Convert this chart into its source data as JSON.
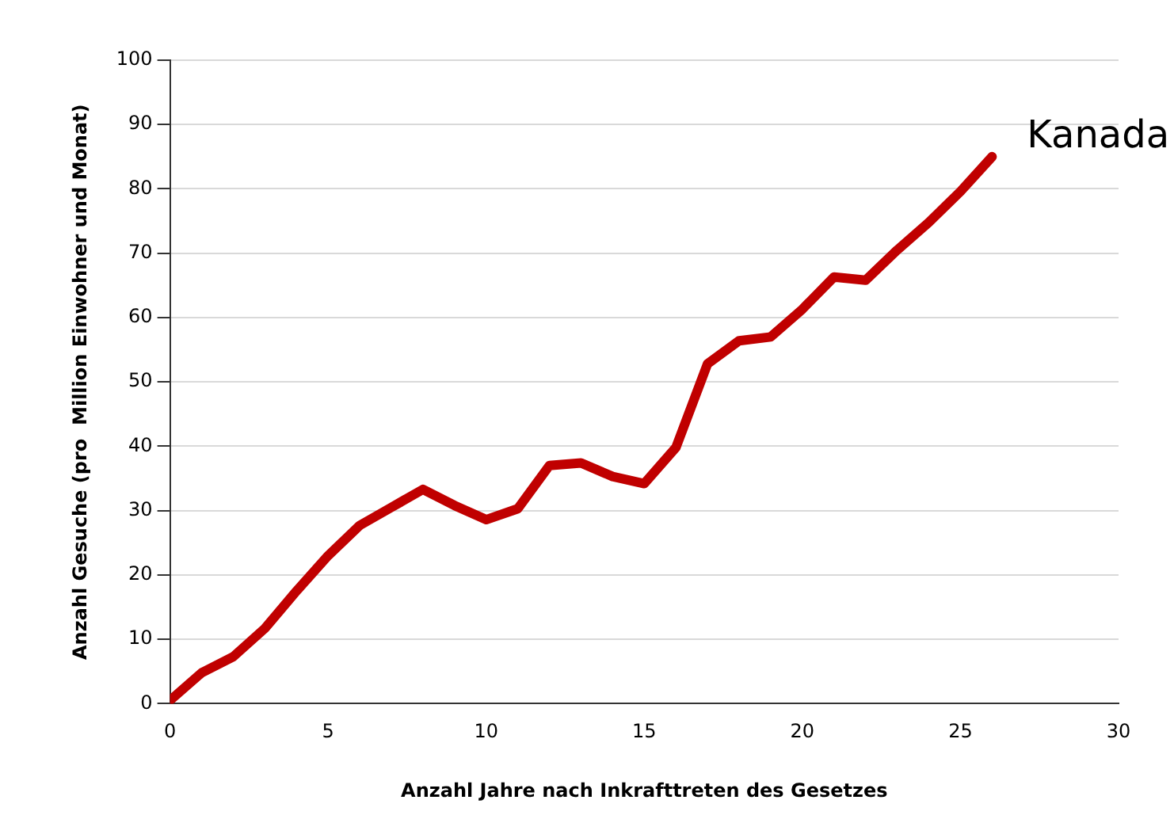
{
  "chart_data": {
    "type": "line",
    "xlabel": "Anzahl Jahre nach Inkrafttreten des Gesetzes",
    "ylabel": "Anzahl Gesuche (pro  Million Einwohner und Monat)",
    "x": [
      0,
      1,
      2,
      3,
      4,
      5,
      6,
      7,
      8,
      9,
      10,
      11,
      12,
      13,
      14,
      15,
      16,
      17,
      18,
      19,
      20,
      21,
      22,
      23,
      24,
      25,
      26
    ],
    "series": [
      {
        "name": "Kanada",
        "color": "#c00000",
        "values": [
          0.5,
          4.8,
          7.3,
          11.7,
          17.5,
          23,
          27.7,
          30.5,
          33.3,
          30.8,
          28.6,
          30.3,
          37,
          37.4,
          35.3,
          34.2,
          39.8,
          52.8,
          56.4,
          57,
          61.3,
          66.3,
          65.8,
          70.5,
          74.8,
          79.6,
          85
        ]
      }
    ],
    "xlim": [
      0,
      30
    ],
    "xticks": [
      0,
      5,
      10,
      15,
      20,
      25,
      30
    ],
    "ylim": [
      0,
      100
    ],
    "yticks": [
      0,
      10,
      20,
      30,
      40,
      50,
      60,
      70,
      80,
      90,
      100
    ],
    "grid": "y",
    "marker": "none",
    "line_style": "solid",
    "legend": false
  }
}
